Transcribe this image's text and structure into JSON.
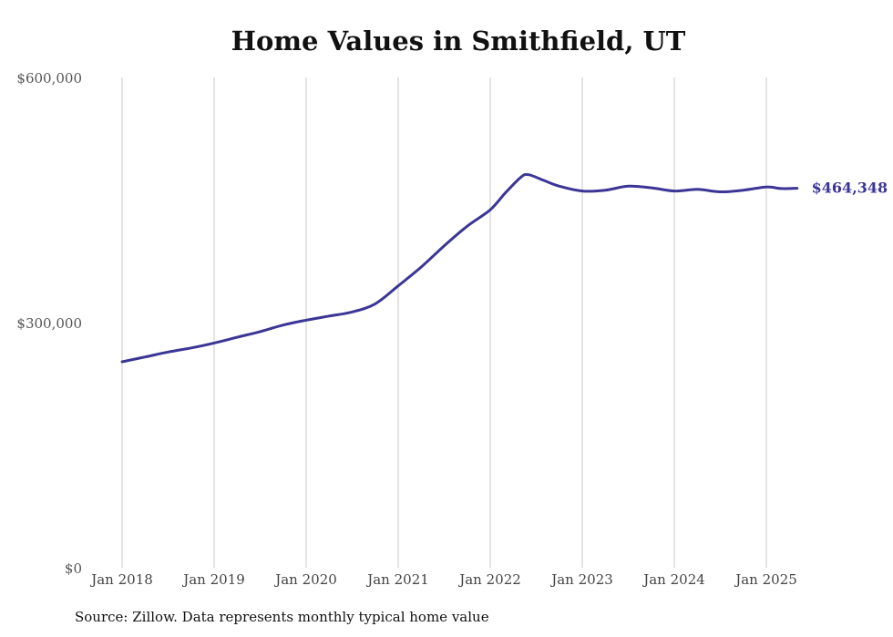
{
  "chart_data": {
    "type": "line",
    "title": "Home Values in Smithfield, UT",
    "source": "Source: Zillow. Data represents monthly typical home value",
    "xlabel": "",
    "ylabel": "",
    "ylim": [
      0,
      600000
    ],
    "y_ticks": [
      {
        "value": 0,
        "label": "$0"
      },
      {
        "value": 300000,
        "label": "$300,000"
      },
      {
        "value": 600000,
        "label": "$600,000"
      }
    ],
    "x_ticks": [
      {
        "date": "2018-01",
        "label": "Jan 2018"
      },
      {
        "date": "2019-01",
        "label": "Jan 2019"
      },
      {
        "date": "2020-01",
        "label": "Jan 2020"
      },
      {
        "date": "2021-01",
        "label": "Jan 2021"
      },
      {
        "date": "2022-01",
        "label": "Jan 2022"
      },
      {
        "date": "2023-01",
        "label": "Jan 2023"
      },
      {
        "date": "2024-01",
        "label": "Jan 2024"
      },
      {
        "date": "2025-01",
        "label": "Jan 2025"
      }
    ],
    "xlim": [
      "2018-01",
      "2025-05"
    ],
    "grid": {
      "vertical": true,
      "horizontal": false
    },
    "line_color": "#3b3596",
    "end_label": "$464,348",
    "series": [
      {
        "x": [
          "2018-01",
          "2018-04",
          "2018-07",
          "2018-10",
          "2019-01",
          "2019-04",
          "2019-07",
          "2019-10",
          "2020-01",
          "2020-04",
          "2020-07",
          "2020-10",
          "2021-01",
          "2021-04",
          "2021-07",
          "2021-10",
          "2022-01",
          "2022-03",
          "2022-05",
          "2022-06",
          "2022-08",
          "2022-10",
          "2023-01",
          "2023-04",
          "2023-07",
          "2023-10",
          "2024-01",
          "2024-04",
          "2024-07",
          "2024-10",
          "2025-01",
          "2025-03",
          "2025-05"
        ],
        "values": [
          252000,
          258000,
          264000,
          269000,
          275000,
          282000,
          289000,
          297000,
          303000,
          308000,
          313000,
          323000,
          345000,
          368000,
          394000,
          418000,
          438000,
          459000,
          478000,
          481000,
          474000,
          467000,
          461000,
          462000,
          467000,
          465000,
          461000,
          463000,
          460000,
          462000,
          466000,
          464000,
          464348
        ]
      }
    ]
  }
}
